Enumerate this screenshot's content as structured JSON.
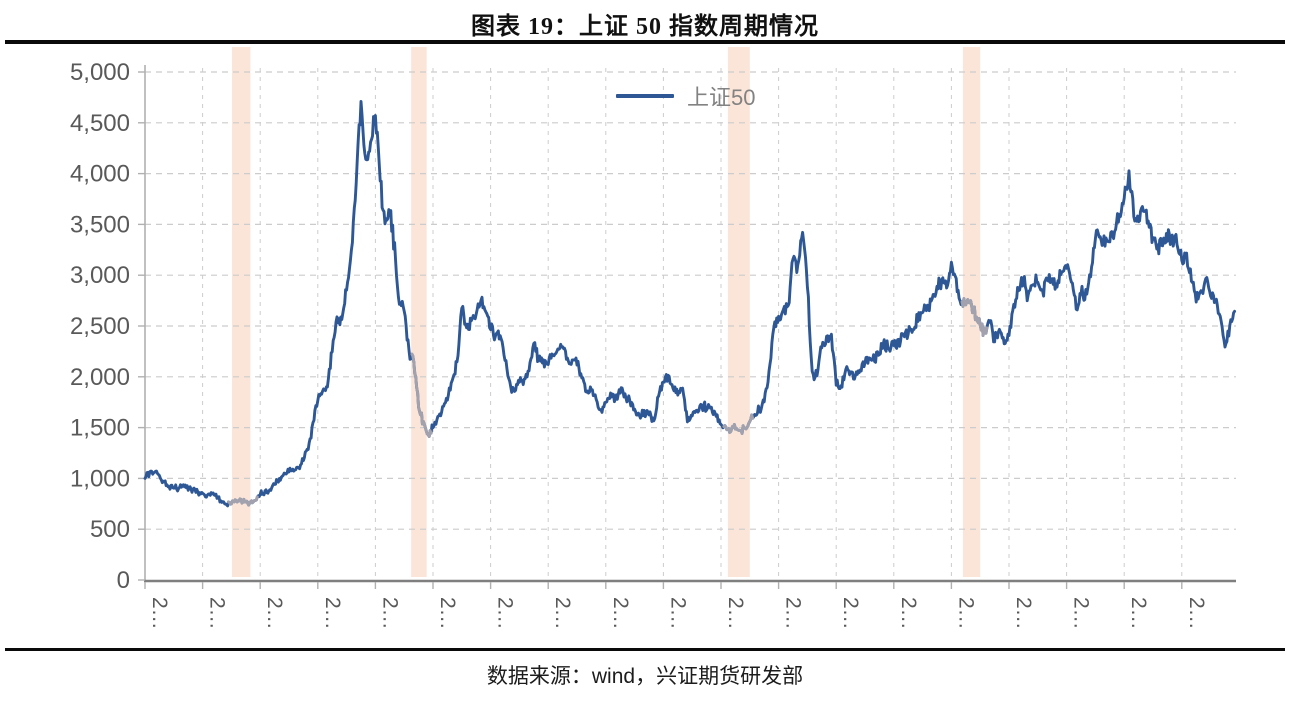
{
  "page": {
    "title": "图表 19：上证 50 指数周期情况"
  },
  "legend": {
    "series_label": "上证50"
  },
  "footer": {
    "label": "数据来源：",
    "source": "wind",
    "dept": "，兴证期货研发部"
  },
  "chart_data": {
    "type": "line",
    "title": "图表 19：上证 50 指数周期情况",
    "legend": [
      "上证50"
    ],
    "legend_position": "top-center",
    "grid": "dashed",
    "ylim": [
      0,
      5000
    ],
    "y_tick_labels": [
      "0",
      "500",
      "1,000",
      "1,500",
      "2,000",
      "2,500",
      "3,000",
      "3,500",
      "4,000",
      "4,500",
      "5,000"
    ],
    "x_tick_labels": [
      "2…",
      "2…",
      "2…",
      "2…",
      "2…",
      "2…",
      "2…",
      "2…",
      "2…",
      "2…",
      "2…",
      "2…",
      "2…",
      "2…",
      "2…",
      "2…",
      "2…",
      "2…",
      "2…"
    ],
    "x_start": "2004-01",
    "x_step_months": 1,
    "series": [
      {
        "name": "上证50",
        "values": [
          1000,
          1060,
          1065,
          1020,
          960,
          915,
          910,
          905,
          945,
          885,
          890,
          865,
          850,
          830,
          855,
          810,
          770,
          745,
          755,
          780,
          790,
          768,
          752,
          788,
          842,
          870,
          895,
          945,
          1000,
          1045,
          1060,
          1075,
          1100,
          1175,
          1290,
          1540,
          1770,
          1860,
          1900,
          2250,
          2580,
          2560,
          2850,
          3260,
          3900,
          4700,
          4150,
          4300,
          4550,
          3950,
          3500,
          3600,
          3300,
          2700,
          2650,
          2250,
          2150,
          1700,
          1550,
          1420,
          1500,
          1620,
          1700,
          1780,
          1950,
          2150,
          2680,
          2480,
          2550,
          2600,
          2750,
          2650,
          2480,
          2400,
          2420,
          2150,
          1950,
          1850,
          1950,
          1980,
          2050,
          2330,
          2180,
          2160,
          2120,
          2220,
          2260,
          2300,
          2180,
          2150,
          2120,
          1980,
          1850,
          1880,
          1780,
          1680,
          1750,
          1850,
          1780,
          1850,
          1830,
          1780,
          1680,
          1620,
          1660,
          1620,
          1560,
          1800,
          1950,
          2010,
          1880,
          1830,
          1880,
          1560,
          1620,
          1680,
          1720,
          1680,
          1700,
          1620,
          1520,
          1500,
          1470,
          1490,
          1480,
          1500,
          1560,
          1620,
          1680,
          1760,
          2050,
          2480,
          2580,
          2650,
          2700,
          3150,
          3100,
          3440,
          2900,
          2050,
          2000,
          2300,
          2400,
          2420,
          1920,
          1900,
          2080,
          2050,
          2000,
          2080,
          2150,
          2180,
          2160,
          2220,
          2350,
          2280,
          2320,
          2360,
          2400,
          2420,
          2480,
          2560,
          2650,
          2700,
          2760,
          2880,
          2950,
          2880,
          3120,
          2950,
          2730,
          2700,
          2750,
          2580,
          2500,
          2450,
          2550,
          2350,
          2450,
          2320,
          2420,
          2700,
          2850,
          2950,
          2800,
          2900,
          2950,
          2850,
          2950,
          2950,
          2900,
          3050,
          3050,
          2950,
          2650,
          2800,
          2850,
          3000,
          3350,
          3400,
          3300,
          3350,
          3450,
          3600,
          3750,
          4030,
          3600,
          3550,
          3650,
          3550,
          3350,
          3300,
          3300,
          3350,
          3400,
          3300,
          3150,
          3200,
          2950,
          2750,
          2850,
          2950,
          2800,
          2750,
          2600,
          2300,
          2500,
          2660
        ]
      }
    ],
    "highlight_bands": [
      {
        "from": 2005.51,
        "to": 2005.83
      },
      {
        "from": 2008.62,
        "to": 2008.89
      },
      {
        "from": 2014.12,
        "to": 2014.5
      },
      {
        "from": 2018.2,
        "to": 2018.5
      }
    ],
    "gray_segments": [
      {
        "from": 2005.45,
        "to": 2005.95
      },
      {
        "from": 2008.62,
        "to": 2008.97
      },
      {
        "from": 2014.05,
        "to": 2014.55
      },
      {
        "from": 2018.17,
        "to": 2018.62
      }
    ],
    "colors": {
      "line": "#2e5795",
      "gray_segment": "#a2a2ae",
      "band": "#fbe5d8",
      "grid": "#cccccc",
      "axis": "#7f7f7f",
      "spine": "#b0b0b0",
      "tick_label": "#595959",
      "legend_text": "#828282"
    }
  }
}
